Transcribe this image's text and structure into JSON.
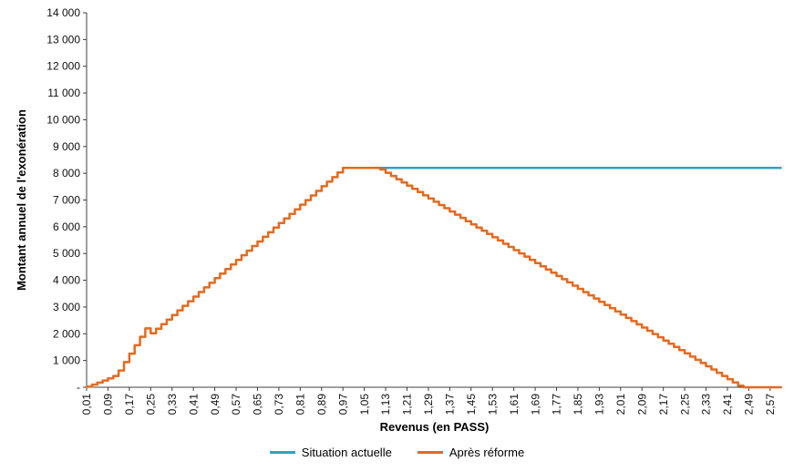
{
  "chart_data": {
    "type": "line",
    "xlabel": "Revenus (en PASS)",
    "ylabel": "Montant annuel de l'exonération",
    "xlim": [
      0.01,
      2.615
    ],
    "ylim": [
      0,
      14000
    ],
    "grid": false,
    "legend_position": "bottom",
    "axis_color": "#3f3f3f",
    "x_tick_labels": [
      "0,01",
      "0,09",
      "0,17",
      "0,25",
      "0,33",
      "0,41",
      "0,49",
      "0,57",
      "0,65",
      "0,73",
      "0,81",
      "0,89",
      "0,97",
      "1,05",
      "1,13",
      "1,21",
      "1,29",
      "1,37",
      "1,45",
      "1,53",
      "1,61",
      "1,69",
      "1,77",
      "1,85",
      "1,93",
      "2,01",
      "2,09",
      "2,17",
      "2,25",
      "2,33",
      "2,41",
      "2,49",
      "2,57"
    ],
    "y_ticks": [
      {
        "v": 0,
        "label": "-"
      },
      {
        "v": 1000,
        "label": "1 000"
      },
      {
        "v": 2000,
        "label": "2 000"
      },
      {
        "v": 3000,
        "label": "3 000"
      },
      {
        "v": 4000,
        "label": "4 000"
      },
      {
        "v": 5000,
        "label": "5 000"
      },
      {
        "v": 6000,
        "label": "6 000"
      },
      {
        "v": 7000,
        "label": "7 000"
      },
      {
        "v": 8000,
        "label": "8 000"
      },
      {
        "v": 9000,
        "label": "9 000"
      },
      {
        "v": 10000,
        "label": "10 000"
      },
      {
        "v": 11000,
        "label": "11 000"
      },
      {
        "v": 12000,
        "label": "12 000"
      },
      {
        "v": 13000,
        "label": "13 000"
      },
      {
        "v": 14000,
        "label": "14 000"
      }
    ],
    "series": [
      {
        "name": "Situation actuelle",
        "color": "#31A2C4",
        "render": "line",
        "points": [
          [
            1.05,
            8200
          ],
          [
            2.61,
            8200
          ]
        ]
      },
      {
        "name": "Après réforme",
        "color": "#E5691F",
        "render": "step",
        "step_dx": 0.02,
        "points": [
          [
            0.01,
            20
          ],
          [
            0.09,
            330
          ],
          [
            0.12,
            470
          ],
          [
            0.23,
            2200
          ],
          [
            0.235,
            2250
          ],
          [
            0.25,
            2020
          ],
          [
            0.26,
            2100
          ],
          [
            0.97,
            8200
          ],
          [
            1.1,
            8200
          ],
          [
            2.46,
            0
          ],
          [
            2.61,
            0
          ]
        ]
      }
    ]
  }
}
